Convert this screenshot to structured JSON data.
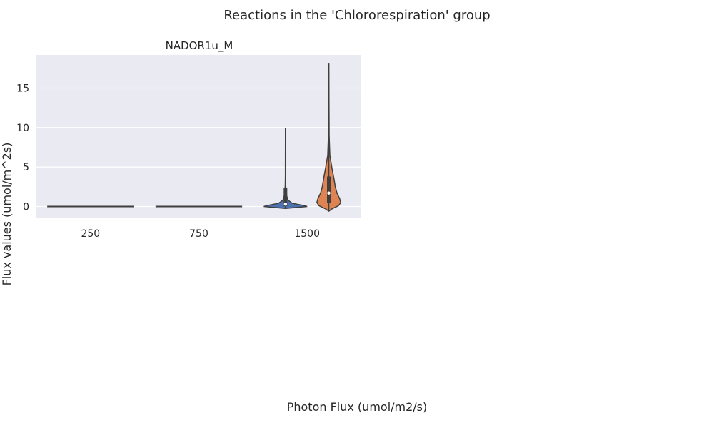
{
  "figure": {
    "suptitle": "Reactions in the 'Chlororespiration' group",
    "xlabel": "Photon Flux (umol/m2/s)",
    "ylabel": "Flux values (umol/m^2s)"
  },
  "chart_data": {
    "type": "violin",
    "title": "NADOR1u_M",
    "categories": [
      "250",
      "750",
      "1500"
    ],
    "ylim": [
      -1.4,
      19.2
    ],
    "yticks": [
      0,
      5,
      10,
      15
    ],
    "grid": true,
    "violins": [
      {
        "category": "250",
        "slot": 0,
        "series_color": "#4c72b0",
        "min": 0,
        "max": 0,
        "median": 0,
        "q1": 0,
        "q3": 0,
        "profile": [
          [
            0,
            1
          ]
        ]
      },
      {
        "category": "750",
        "slot": 0,
        "series_color": "#4c72b0",
        "min": 0,
        "max": 0,
        "median": 0,
        "q1": 0,
        "q3": 0,
        "profile": [
          [
            0,
            1
          ]
        ]
      },
      {
        "category": "1500",
        "slot": 0,
        "series_color": "#4c72b0",
        "min": -0.25,
        "max": 9.9,
        "median": 0.3,
        "q1": 0.05,
        "q3": 2.3,
        "profile": [
          [
            -0.25,
            0
          ],
          [
            -0.1,
            0.6
          ],
          [
            0,
            1
          ],
          [
            0.15,
            0.8
          ],
          [
            0.4,
            0.32
          ],
          [
            0.8,
            0.12
          ],
          [
            1.3,
            0.06
          ],
          [
            2.0,
            0.035
          ],
          [
            2.6,
            0.012
          ],
          [
            4.0,
            0.006
          ],
          [
            6.0,
            0.004
          ],
          [
            9.9,
            0.002
          ]
        ]
      },
      {
        "category": "1500",
        "slot": 1,
        "series_color": "#dd8452",
        "min": -0.6,
        "max": 18.1,
        "median": 1.7,
        "q1": 0.5,
        "q3": 3.8,
        "profile": [
          [
            -0.6,
            0
          ],
          [
            -0.3,
            0.15
          ],
          [
            0.1,
            0.45
          ],
          [
            0.5,
            0.55
          ],
          [
            1.0,
            0.5
          ],
          [
            1.7,
            0.38
          ],
          [
            2.5,
            0.3
          ],
          [
            3.5,
            0.24
          ],
          [
            4.8,
            0.15
          ],
          [
            6.5,
            0.05
          ],
          [
            9.0,
            0.015
          ],
          [
            18.1,
            0
          ]
        ]
      }
    ]
  }
}
